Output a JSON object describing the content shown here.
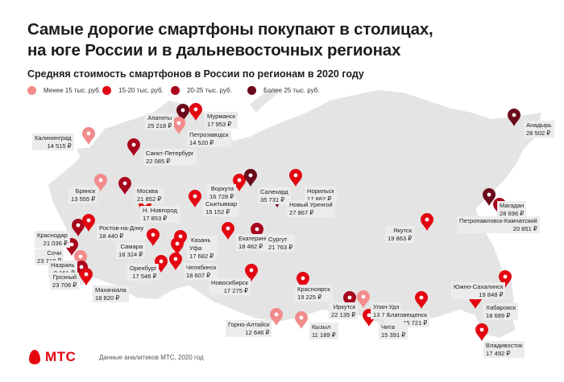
{
  "title_line1": "Самые дорогие смартфоны покупают в столицах,",
  "title_line2": "на юге России и в дальневосточных регионах",
  "subtitle": "Средняя стоимость смартфонов в России по регионам в 2020 году",
  "legend": [
    {
      "label": "Менее 15 тыс. руб.",
      "color": "#f28b8b"
    },
    {
      "label": "15-20 тыс. руб.",
      "color": "#e30611"
    },
    {
      "label": "20-25 тыс. руб.",
      "color": "#a8061c"
    },
    {
      "label": "Более 25 тыс. руб.",
      "color": "#6b0a1a"
    }
  ],
  "colors": {
    "map_fill": "#e4e4e4",
    "label_bg": "#ececec",
    "brand": "#e30611"
  },
  "regions": [
    {
      "name": "Калининград",
      "price": "14 515 ₽",
      "tier": 0
    },
    {
      "name": "Апатиты",
      "price": "25 218 ₽",
      "tier": 3
    },
    {
      "name": "Мурманск",
      "price": "17 953 ₽",
      "tier": 1
    },
    {
      "name": "Петрозаводск",
      "price": "14 520 ₽",
      "tier": 0
    },
    {
      "name": "Санкт-Петербург",
      "price": "22 085 ₽",
      "tier": 2
    },
    {
      "name": "Брянск",
      "price": "13 555 ₽",
      "tier": 0
    },
    {
      "name": "Москва",
      "price": "21 852 ₽",
      "tier": 2
    },
    {
      "name": "Н. Новгород",
      "price": "17 853 ₽",
      "tier": 1
    },
    {
      "name": "Сыктывкар",
      "price": "15 152 ₽",
      "tier": 1
    },
    {
      "name": "Воркута",
      "price": "16 728 ₽",
      "tier": 1
    },
    {
      "name": "Салехард",
      "price": "35 731 ₽",
      "tier": 3
    },
    {
      "name": "Норильск",
      "price": "17 882 ₽",
      "tier": 1
    },
    {
      "name": "Новый Уренгой",
      "price": "27 867 ₽",
      "tier": 3
    },
    {
      "name": "Анадырь",
      "price": "28 502 ₽",
      "tier": 3
    },
    {
      "name": "Магадан",
      "price": "28 696 ₽",
      "tier": 3
    },
    {
      "name": "Петропавловск-Камчатский",
      "price": "20 851 ₽",
      "tier": 2
    },
    {
      "name": "Краснодар",
      "price": "21 036 ₽",
      "tier": 2
    },
    {
      "name": "Ростов-на-Дону",
      "price": "18 440 ₽",
      "tier": 1
    },
    {
      "name": "Сочи",
      "price": "23 718 ₽",
      "tier": 2
    },
    {
      "name": "Казань",
      "price": "17 698 ₽",
      "tier": 1
    },
    {
      "name": "Самара",
      "price": "18 324 ₽",
      "tier": 1
    },
    {
      "name": "Уфа",
      "price": "17 682 ₽",
      "tier": 1
    },
    {
      "name": "Екатеринбург",
      "price": "18 482 ₽",
      "tier": 1
    },
    {
      "name": "Сургут",
      "price": "21 763 ₽",
      "tier": 2
    },
    {
      "name": "Якутск",
      "price": "19 863 ₽",
      "tier": 1
    },
    {
      "name": "Назрань",
      "price": "9 161 ₽",
      "tier": 0
    },
    {
      "name": "Оренбург",
      "price": "17 546 ₽",
      "tier": 1
    },
    {
      "name": "Челябинск",
      "price": "18 607 ₽",
      "tier": 1
    },
    {
      "name": "Грозный",
      "price": "23 706 ₽",
      "tier": 2
    },
    {
      "name": "Махачкала",
      "price": "18 820 ₽",
      "tier": 1
    },
    {
      "name": "Новосибирск",
      "price": "17 275 ₽",
      "tier": 1
    },
    {
      "name": "Красноярск",
      "price": "19 225 ₽",
      "tier": 1
    },
    {
      "name": "Южно-Сахалинск",
      "price": "19 848 ₽",
      "tier": 1
    },
    {
      "name": "Иркутск",
      "price": "22 135 ₽",
      "tier": 2
    },
    {
      "name": "Улан-Удэ",
      "price": "13 734 ₽",
      "tier": 0
    },
    {
      "name": "Благовещенск",
      "price": "15 721 ₽",
      "tier": 1
    },
    {
      "name": "Хабаровск",
      "price": "18 689 ₽",
      "tier": 1
    },
    {
      "name": "Горно-Алтайск",
      "price": "12 646 ₽",
      "tier": 0
    },
    {
      "name": "Кызыл",
      "price": "11 189 ₽",
      "tier": 0
    },
    {
      "name": "Чита",
      "price": "15 391 ₽",
      "tier": 1
    },
    {
      "name": "Владивосток",
      "price": "17 492 ₽",
      "tier": 1
    }
  ],
  "footer": {
    "logo": "МТС",
    "note": "Данные аналитиков МТС, 2020 год"
  }
}
